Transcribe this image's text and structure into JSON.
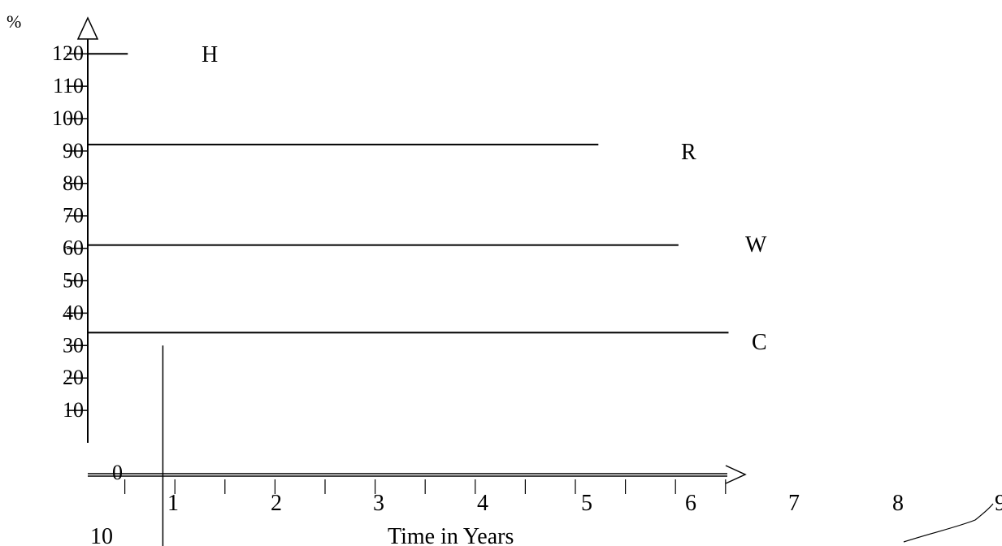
{
  "chart_data": {
    "type": "line",
    "title": "",
    "ylabel": "%",
    "xlabel": "Time in Years",
    "y_ticks": [
      "120",
      "110",
      "100",
      "90",
      "80",
      "70",
      "60",
      "50",
      "40",
      "30",
      "20",
      "10"
    ],
    "origin_label": "0",
    "x_ticks": [
      "1",
      "2",
      "3",
      "4",
      "5",
      "6",
      "7",
      "8",
      "9",
      "10"
    ],
    "series": [
      {
        "name": "H",
        "y": 120,
        "x": [
          0,
          0.4
        ]
      },
      {
        "name": "R",
        "y": 92,
        "x": [
          0,
          5.1
        ]
      },
      {
        "name": "W",
        "y": 61,
        "x": [
          0,
          5.9
        ]
      },
      {
        "name": "C",
        "y": 34,
        "x": [
          0,
          6.4
        ]
      }
    ],
    "marker": {
      "x": 0.75,
      "y": [
        0,
        30
      ]
    },
    "ylim": [
      0,
      120
    ],
    "xlim": [
      0,
      6.5
    ],
    "grid": false
  }
}
